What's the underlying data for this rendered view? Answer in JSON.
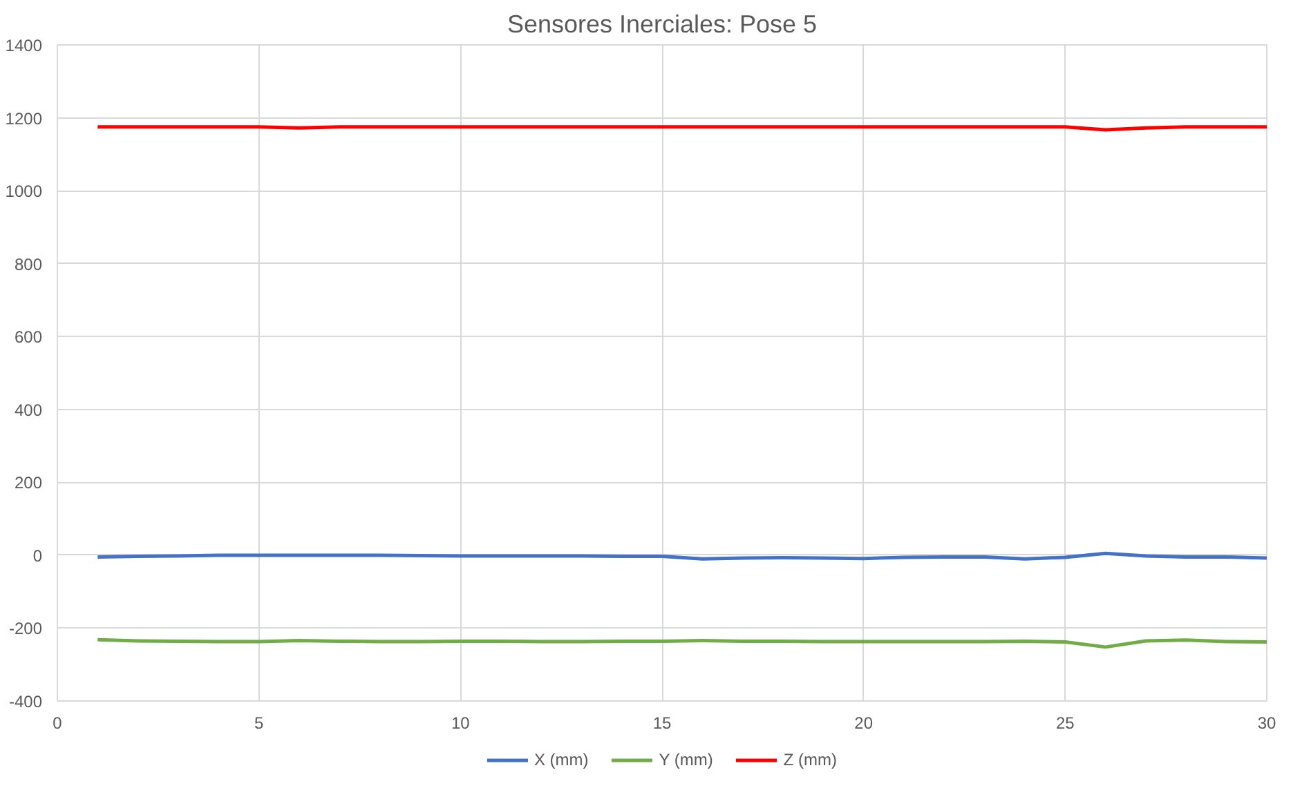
{
  "chart_data": {
    "type": "line",
    "title": "Sensores Inerciales: Pose 5",
    "x": [
      1,
      2,
      3,
      4,
      5,
      6,
      7,
      8,
      9,
      10,
      11,
      12,
      13,
      14,
      15,
      16,
      17,
      18,
      19,
      20,
      21,
      22,
      23,
      24,
      25,
      26,
      27,
      28,
      29,
      30
    ],
    "series": [
      {
        "name": "X (mm)",
        "color": "#4472c4",
        "values": [
          -5,
          -3,
          -2,
          0,
          0,
          0,
          0,
          0,
          -1,
          -2,
          -2,
          -2,
          -2,
          -3,
          -3,
          -10,
          -8,
          -7,
          -8,
          -9,
          -6,
          -5,
          -5,
          -10,
          -6,
          5,
          -2,
          -5,
          -5,
          -8
        ]
      },
      {
        "name": "Y (mm)",
        "color": "#70ad47",
        "values": [
          -232,
          -235,
          -236,
          -237,
          -237,
          -234,
          -236,
          -237,
          -237,
          -236,
          -236,
          -237,
          -237,
          -236,
          -236,
          -234,
          -236,
          -236,
          -237,
          -237,
          -237,
          -237,
          -237,
          -236,
          -238,
          -252,
          -235,
          -233,
          -237,
          -238
        ]
      },
      {
        "name": "Z (mm)",
        "color": "#ff0000",
        "values": [
          1175,
          1175,
          1175,
          1175,
          1175,
          1172,
          1175,
          1175,
          1175,
          1175,
          1175,
          1175,
          1175,
          1175,
          1175,
          1175,
          1175,
          1175,
          1175,
          1175,
          1175,
          1175,
          1175,
          1175,
          1175,
          1167,
          1172,
          1175,
          1175,
          1175
        ]
      }
    ],
    "xlim": [
      0,
      30
    ],
    "xticks": [
      0,
      5,
      10,
      15,
      20,
      25,
      30
    ],
    "ylim": [
      -400,
      1400
    ],
    "yticks": [
      -400,
      -200,
      0,
      200,
      400,
      600,
      800,
      1000,
      1200,
      1400
    ],
    "grid": true,
    "legend": "bottom",
    "line_style": "solid",
    "marker": "none"
  }
}
